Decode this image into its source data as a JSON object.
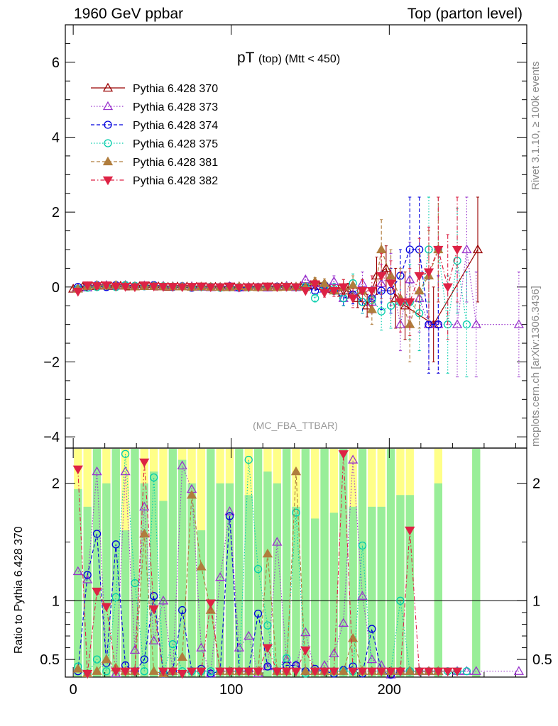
{
  "header": {
    "left": "1960 GeV ppbar",
    "right": "Top (parton level)"
  },
  "side_labels": {
    "rivet": "Rivet 3.1.10, ≥ 100k events",
    "mcplots": "mcplots.cern.ch [arXiv:1306.3436]"
  },
  "chart_data": {
    "type": "line",
    "title_main": "pT",
    "title_sub": "(top) (Mtt < 450)",
    "watermark": "(MC_FBA_TTBAR)",
    "reference_label": "Pythia 6.428 370",
    "xlim": [
      -5,
      287
    ],
    "ylim": [
      -4.3,
      7.0
    ],
    "ratio_ylim": [
      0.35,
      2.3
    ],
    "ratio_ylabel": "Ratio to Pythia 6.428 370",
    "x_ticks": [
      0,
      100,
      200
    ],
    "y_ticks": [
      -4,
      -2,
      0,
      2,
      4,
      6
    ],
    "ratio_ticks": [
      0.5,
      1,
      2
    ],
    "legend_position": "top-left",
    "series": [
      {
        "name": "Pythia 6.428 370",
        "color": "#990000",
        "marker": "triangle-up-open",
        "dash": "solid",
        "x": [
          0,
          6,
          12,
          18,
          24,
          30,
          36,
          42,
          48,
          54,
          60,
          66,
          72,
          78,
          84,
          90,
          96,
          102,
          108,
          114,
          120,
          126,
          132,
          138,
          144,
          150,
          156,
          162,
          168,
          174,
          180,
          186,
          192,
          198,
          204,
          210,
          228,
          256
        ],
        "y": [
          -0.05,
          0,
          0.02,
          0.03,
          0.02,
          0.03,
          0.01,
          0.02,
          0.02,
          0.01,
          0,
          0.01,
          0.01,
          0,
          0,
          0,
          -0.01,
          -0.01,
          -0.01,
          0,
          0,
          0,
          0.01,
          0,
          0.02,
          0.05,
          0.02,
          -0.05,
          -0.1,
          -0.1,
          -0.3,
          -0.5,
          0.3,
          0.5,
          -0.3,
          -0.5,
          -1,
          1
        ],
        "err": [
          0.05,
          0.03,
          0.03,
          0.03,
          0.03,
          0.03,
          0.03,
          0.03,
          0.03,
          0.03,
          0.03,
          0.03,
          0.03,
          0.03,
          0.03,
          0.03,
          0.03,
          0.03,
          0.03,
          0.03,
          0.03,
          0.03,
          0.03,
          0.03,
          0.05,
          0.06,
          0.08,
          0.1,
          0.15,
          0.2,
          0.25,
          0.3,
          0.5,
          0.6,
          0.8,
          0.9,
          1.0,
          1.4
        ],
        "ratio": [
          1,
          1,
          1,
          1,
          1,
          1,
          1,
          1,
          1,
          1,
          1,
          1,
          1,
          1,
          1,
          1,
          1,
          1,
          1,
          1,
          1,
          1,
          1,
          1,
          1,
          1,
          1,
          1,
          1,
          1,
          1,
          1,
          1,
          1,
          1,
          1,
          1,
          1
        ]
      },
      {
        "name": "Pythia 6.428 373",
        "color": "#9933cc",
        "marker": "triangle-up-open",
        "dash": "dotted",
        "x": [
          3,
          9,
          15,
          21,
          27,
          33,
          39,
          45,
          51,
          57,
          63,
          69,
          75,
          81,
          87,
          93,
          99,
          105,
          111,
          117,
          123,
          129,
          135,
          141,
          147,
          153,
          159,
          165,
          171,
          177,
          183,
          189,
          195,
          201,
          207,
          213,
          219,
          225,
          231,
          243,
          249,
          255,
          282
        ],
        "y": [
          -0.03,
          -0.02,
          0.05,
          0.05,
          0.03,
          0.05,
          0.02,
          0.04,
          0.02,
          0.03,
          0.02,
          0.01,
          0.02,
          0.0,
          -0.01,
          0.0,
          0.02,
          -0.02,
          0.01,
          -0.01,
          -0.02,
          0.0,
          0.03,
          -0.01,
          0.2,
          0.1,
          -0.05,
          0.15,
          -0.3,
          -0.2,
          0.1,
          -0.4,
          0.1,
          0.3,
          -1,
          0.2,
          -0.3,
          -1,
          -1,
          -1,
          1,
          -1,
          -1
        ],
        "err": [
          0.05,
          0.04,
          0.04,
          0.04,
          0.04,
          0.04,
          0.04,
          0.04,
          0.04,
          0.04,
          0.04,
          0.04,
          0.04,
          0.04,
          0.04,
          0.04,
          0.04,
          0.04,
          0.04,
          0.04,
          0.04,
          0.04,
          0.05,
          0.06,
          0.08,
          0.1,
          0.12,
          0.15,
          0.2,
          0.25,
          0.3,
          0.3,
          0.5,
          0.6,
          0.7,
          1.0,
          0.9,
          1.2,
          1.3,
          1.4,
          1.4,
          1.4,
          1.4
        ],
        "ratio": [
          1.25,
          1.18,
          2.1,
          0.5,
          0.38,
          2.1,
          0.58,
          1.8,
          0.66,
          1.0,
          0.4,
          2.15,
          1.95,
          0.6,
          0.38,
          1.2,
          1.76,
          0.6,
          0.7,
          0.38,
          0.44,
          1.5,
          0.5,
          0.45,
          0.73,
          0.4,
          0.45,
          0.55,
          0.81,
          2.2,
          1.04,
          0.5,
          0.45,
          0.37,
          0.4,
          0.4,
          0.4,
          0.4,
          0.4,
          0.4,
          0.4,
          0.4,
          0.4
        ]
      },
      {
        "name": "Pythia 6.428 374",
        "color": "#0000dd",
        "marker": "circle-open",
        "dash": "dashed",
        "x": [
          3,
          9,
          15,
          21,
          27,
          33,
          39,
          45,
          51,
          57,
          63,
          69,
          75,
          81,
          87,
          93,
          99,
          105,
          111,
          117,
          123,
          129,
          135,
          141,
          147,
          153,
          159,
          165,
          171,
          177,
          183,
          189,
          195,
          201,
          207,
          213,
          219,
          225,
          231
        ],
        "y": [
          0,
          0.02,
          0.05,
          0,
          0.05,
          0.05,
          0.03,
          0.02,
          0.05,
          0.01,
          0.0,
          0.02,
          -0.02,
          0.01,
          0.0,
          0.0,
          0.02,
          -0.02,
          0.0,
          0.0,
          0.0,
          0.01,
          0.0,
          0.0,
          -0.01,
          -0.1,
          0.05,
          -0.1,
          -0.3,
          -0.2,
          -0.4,
          -0.3,
          -0.1,
          -0.1,
          0.3,
          1,
          1,
          -1,
          -1
        ],
        "err": [
          0.04,
          0.04,
          0.04,
          0.04,
          0.04,
          0.04,
          0.04,
          0.04,
          0.04,
          0.04,
          0.04,
          0.04,
          0.04,
          0.04,
          0.04,
          0.04,
          0.04,
          0.04,
          0.04,
          0.04,
          0.04,
          0.04,
          0.05,
          0.06,
          0.08,
          0.1,
          0.12,
          0.15,
          0.2,
          0.25,
          0.3,
          0.3,
          0.5,
          0.6,
          0.7,
          1.4,
          1.4,
          1.3,
          1.3
        ],
        "ratio": [
          0.4,
          1.22,
          1.57,
          0.47,
          1.48,
          0.45,
          0.4,
          0.5,
          1.04,
          0.38,
          0.4,
          0.92,
          0.4,
          0.42,
          0.38,
          0.4,
          1.72,
          0.4,
          0.4,
          0.89,
          0.44,
          0.4,
          0.45,
          0.45,
          0.4,
          0.42,
          0.4,
          0.38,
          0.41,
          0.44,
          0.38,
          0.76,
          0.4,
          0.37,
          0.4,
          0.4,
          0.4,
          0.4,
          0.4
        ]
      },
      {
        "name": "Pythia 6.428 375",
        "color": "#00ccaa",
        "marker": "circle-open",
        "dash": "dotted",
        "x": [
          3,
          9,
          15,
          21,
          27,
          33,
          39,
          45,
          51,
          57,
          63,
          69,
          75,
          81,
          87,
          93,
          99,
          105,
          111,
          117,
          123,
          129,
          135,
          141,
          147,
          153,
          159,
          165,
          171,
          177,
          183,
          189,
          195,
          201,
          207,
          213,
          219,
          225,
          231,
          237,
          243,
          249
        ],
        "y": [
          -0.05,
          -0.02,
          0,
          0.03,
          0,
          0.05,
          0.03,
          0.02,
          0.03,
          0.02,
          0.01,
          0.01,
          0,
          0,
          0.01,
          -0.02,
          -0.01,
          0,
          -0.01,
          -0.01,
          0.01,
          0.0,
          0.01,
          0.0,
          0.01,
          -0.3,
          0.02,
          -0.05,
          -0.3,
          0.1,
          -0.4,
          -0.35,
          -0.65,
          -0.5,
          -0.4,
          -0.4,
          -0.7,
          1,
          1,
          -1,
          0.7,
          -1
        ],
        "err": [
          0.04,
          0.04,
          0.04,
          0.04,
          0.04,
          0.04,
          0.04,
          0.04,
          0.04,
          0.04,
          0.04,
          0.04,
          0.04,
          0.04,
          0.04,
          0.04,
          0.04,
          0.04,
          0.04,
          0.04,
          0.04,
          0.04,
          0.05,
          0.06,
          0.08,
          0.1,
          0.12,
          0.15,
          0.2,
          0.25,
          0.3,
          0.3,
          0.5,
          0.6,
          0.7,
          1.0,
          1.0,
          1.4,
          1.4,
          1.3,
          1.4,
          1.4
        ],
        "ratio": [
          0.44,
          0.38,
          0.5,
          0.4,
          1.03,
          2.25,
          1.15,
          0.4,
          2.05,
          0.4,
          0.63,
          0.4,
          0.4,
          0.4,
          0.4,
          0.4,
          0.4,
          0.4,
          2.2,
          1.27,
          0.79,
          0.4,
          0.51,
          1.75,
          0.38,
          0.4,
          0.4,
          0.4,
          0.4,
          0.4,
          1.47,
          0.4,
          0.4,
          0.4,
          1.0,
          0.4,
          0.4,
          0.4,
          0.4,
          0.4,
          0.4,
          0.4
        ]
      },
      {
        "name": "Pythia 6.428 381",
        "color": "#b07d3d",
        "marker": "triangle-up-filled",
        "dash": "dashed",
        "x": [
          3,
          9,
          15,
          21,
          27,
          33,
          39,
          45,
          51,
          57,
          63,
          69,
          75,
          81,
          87,
          93,
          99,
          105,
          111,
          117,
          123,
          129,
          135,
          141,
          147,
          153,
          159,
          165,
          171,
          177,
          183,
          189,
          195,
          201,
          207,
          213,
          219,
          225,
          231
        ],
        "y": [
          -0.05,
          0.02,
          0.05,
          0.03,
          0.05,
          0.03,
          0.01,
          0.02,
          0.02,
          0.01,
          0.01,
          0.01,
          0,
          0.01,
          0,
          0,
          -0.01,
          0.02,
          0.0,
          -0.01,
          0.0,
          -0.01,
          0.0,
          0.01,
          0.0,
          0.15,
          0.1,
          -0.1,
          0.0,
          0.05,
          -0.1,
          -0.6,
          1.0,
          0.3,
          -0.3,
          -1.0,
          -0.1,
          0.3,
          1.0
        ],
        "err": [
          0.04,
          0.04,
          0.04,
          0.04,
          0.04,
          0.04,
          0.04,
          0.04,
          0.04,
          0.04,
          0.04,
          0.04,
          0.04,
          0.04,
          0.04,
          0.04,
          0.04,
          0.04,
          0.04,
          0.04,
          0.04,
          0.04,
          0.05,
          0.06,
          0.08,
          0.1,
          0.12,
          0.15,
          0.2,
          0.25,
          0.3,
          0.4,
          0.8,
          0.7,
          0.8,
          1.0,
          1.0,
          1.2,
          1.4
        ],
        "ratio": [
          0.42,
          0.38,
          0.4,
          0.5,
          0.43,
          0.4,
          0.4,
          1.57,
          0.4,
          0.38,
          0.4,
          0.52,
          1.9,
          1.29,
          0.92,
          0.4,
          0.4,
          0.4,
          0.4,
          0.4,
          1.4,
          0.4,
          0.4,
          2.1,
          0.4,
          0.4,
          0.4,
          0.4,
          0.4,
          0.68,
          0.4,
          0.4,
          0.4,
          0.4,
          0.4,
          0.4,
          0.4,
          0.4,
          0.4
        ]
      },
      {
        "name": "Pythia 6.428 382",
        "color": "#dd2244",
        "marker": "triangle-down-filled",
        "dash": "dashdot",
        "x": [
          3,
          9,
          15,
          21,
          27,
          33,
          39,
          45,
          51,
          57,
          63,
          69,
          75,
          81,
          87,
          93,
          99,
          105,
          111,
          117,
          123,
          129,
          135,
          141,
          147,
          153,
          159,
          165,
          171,
          177,
          183,
          189,
          195,
          201,
          207,
          213,
          219,
          225,
          231,
          237,
          243
        ],
        "y": [
          -0.12,
          0.05,
          0.03,
          0.05,
          0.02,
          0.01,
          0.0,
          0.05,
          0.02,
          0.01,
          0.01,
          0.0,
          0.01,
          0.02,
          0.0,
          0.0,
          0.02,
          -0.01,
          0.0,
          0.0,
          0.02,
          0.0,
          0.01,
          0.0,
          -0.1,
          0.08,
          -0.15,
          -0.1,
          0.0,
          -0.3,
          -0.1,
          -0.1,
          0.3,
          0.1,
          -0.4,
          -0.4,
          0.3,
          0.4,
          1.0,
          0.0,
          1.0
        ],
        "err": [
          0.05,
          0.04,
          0.04,
          0.04,
          0.04,
          0.04,
          0.04,
          0.04,
          0.04,
          0.04,
          0.04,
          0.04,
          0.04,
          0.04,
          0.04,
          0.04,
          0.04,
          0.04,
          0.04,
          0.04,
          0.04,
          0.04,
          0.05,
          0.06,
          0.08,
          0.1,
          0.12,
          0.15,
          0.2,
          0.25,
          0.3,
          0.4,
          0.6,
          0.6,
          0.8,
          0.9,
          1.0,
          1.2,
          1.4,
          1.4,
          1.4
        ],
        "ratio": [
          2.12,
          0.38,
          1.08,
          0.95,
          0.4,
          0.4,
          0.4,
          2.18,
          0.93,
          0.4,
          0.4,
          0.38,
          0.4,
          0.4,
          0.98,
          0.4,
          0.4,
          0.4,
          0.4,
          0.4,
          0.6,
          0.4,
          0.4,
          0.4,
          0.58,
          0.4,
          0.4,
          0.4,
          2.25,
          0.4,
          0.4,
          0.4,
          0.4,
          0.4,
          0.4,
          1.6,
          0.4,
          0.4,
          0.4,
          0.4,
          0.4
        ]
      }
    ],
    "ratio_bands": {
      "x_edges": [
        0,
        6,
        12,
        18,
        24,
        30,
        36,
        42,
        48,
        54,
        60,
        66,
        72,
        78,
        84,
        90,
        96,
        102,
        108,
        114,
        120,
        126,
        132,
        138,
        144,
        150,
        156,
        162,
        168,
        174,
        180,
        186,
        192,
        198,
        204,
        210,
        216,
        222,
        228,
        234,
        240,
        246,
        252,
        258
      ],
      "green": [
        1.95,
        1.8,
        2.3,
        2.0,
        2.3,
        1.6,
        2.3,
        2.0,
        2.1,
        1.85,
        2.3,
        2.2,
        2.0,
        1.6,
        2.3,
        2.0,
        2.0,
        2.3,
        1.9,
        2.3,
        2.1,
        2.0,
        2.3,
        1.8,
        2.3,
        1.7,
        2.3,
        1.75,
        2.3,
        1.8,
        2.3,
        1.8,
        1.8,
        2.3,
        1.9,
        1.9,
        0,
        0,
        2.0,
        0,
        0,
        0,
        2.3,
        0
      ],
      "yellow": [
        2.3,
        2.3,
        2.3,
        2.3,
        2.3,
        2.3,
        2.3,
        2.3,
        2.3,
        2.3,
        2.3,
        2.3,
        2.3,
        2.3,
        2.3,
        2.3,
        2.3,
        2.3,
        2.3,
        2.3,
        2.3,
        2.3,
        2.3,
        2.3,
        2.3,
        2.3,
        2.3,
        2.3,
        2.3,
        2.3,
        2.3,
        2.3,
        2.3,
        2.3,
        2.3,
        2.3,
        0,
        0,
        2.3,
        0,
        0,
        0,
        2.3,
        0
      ]
    }
  }
}
